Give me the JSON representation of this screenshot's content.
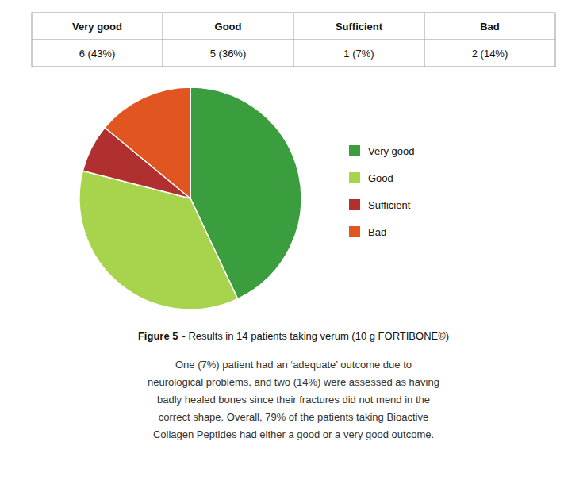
{
  "chart_data": {
    "type": "pie",
    "title": "Figure 5",
    "subtitle": "- Results in 14 patients taking verum (10 g FORTIBONE®)",
    "categories": [
      "Very good",
      "Good",
      "Sufficient",
      "Bad"
    ],
    "values": [
      43,
      36,
      7,
      14
    ],
    "colors": [
      "#3a9e3f",
      "#a8d44d",
      "#b03030",
      "#e05520"
    ],
    "legend": "right",
    "table": {
      "headers": [
        "Very good",
        "Good",
        "Sufficient",
        "Bad"
      ],
      "values": [
        "6 (43%)",
        "5 (36%)",
        "1 (7%)",
        "2 (14%)"
      ]
    },
    "annotations": [
      "One (7%) patient had an ‘adequate’ outcome due to",
      "neurological problems, and two (14%) were assessed as having",
      "badly healed bones since their fractures did not mend in the",
      "correct shape. Overall, 79% of the patients taking Bioactive",
      "Collagen Peptides had either a good or a very good outcome."
    ]
  }
}
